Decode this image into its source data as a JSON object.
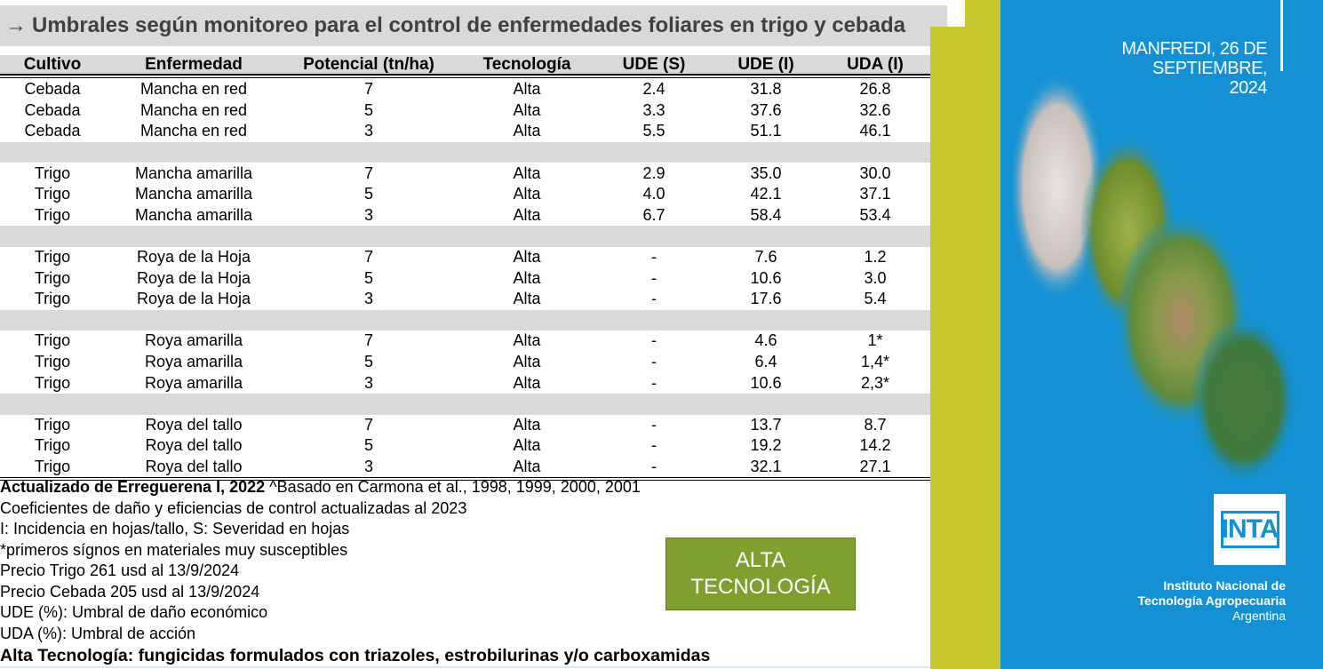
{
  "title": {
    "arrow": "→",
    "text": "Umbrales según monitoreo para el control de enfermedades foliares en trigo y cebada"
  },
  "table": {
    "headers": [
      "Cultivo",
      "Enfermedad",
      "Potencial (tn/ha)",
      "Tecnología",
      "UDE (S)",
      "UDE (I)",
      "UDA (I)"
    ],
    "groups": [
      [
        [
          "Cebada",
          "Mancha en red",
          "7",
          "Alta",
          "2.4",
          "31.8",
          "26.8"
        ],
        [
          "Cebada",
          "Mancha en red",
          "5",
          "Alta",
          "3.3",
          "37.6",
          "32.6"
        ],
        [
          "Cebada",
          "Mancha en red",
          "3",
          "Alta",
          "5.5",
          "51.1",
          "46.1"
        ]
      ],
      [
        [
          "Trigo",
          "Mancha amarilla",
          "7",
          "Alta",
          "2.9",
          "35.0",
          "30.0"
        ],
        [
          "Trigo",
          "Mancha amarilla",
          "5",
          "Alta",
          "4.0",
          "42.1",
          "37.1"
        ],
        [
          "Trigo",
          "Mancha amarilla",
          "3",
          "Alta",
          "6.7",
          "58.4",
          "53.4"
        ]
      ],
      [
        [
          "Trigo",
          "Roya de la Hoja",
          "7",
          "Alta",
          "-",
          "7.6",
          "1.2"
        ],
        [
          "Trigo",
          "Roya de la Hoja",
          "5",
          "Alta",
          "-",
          "10.6",
          "3.0"
        ],
        [
          "Trigo",
          "Roya de la Hoja",
          "3",
          "Alta",
          "-",
          "17.6",
          "5.4"
        ]
      ],
      [
        [
          "Trigo",
          "Roya amarilla",
          "7",
          "Alta",
          "-",
          "4.6",
          "1*"
        ],
        [
          "Trigo",
          "Roya amarilla",
          "5",
          "Alta",
          "-",
          "6.4",
          "1,4*"
        ],
        [
          "Trigo",
          "Roya amarilla",
          "3",
          "Alta",
          "-",
          "10.6",
          "2,3*"
        ]
      ],
      [
        [
          "Trigo",
          "Roya del tallo",
          "7",
          "Alta",
          "-",
          "13.7",
          "8.7"
        ],
        [
          "Trigo",
          "Roya del tallo",
          "5",
          "Alta",
          "-",
          "19.2",
          "14.2"
        ],
        [
          "Trigo",
          "Roya del tallo",
          "3",
          "Alta",
          "-",
          "32.1",
          "27.1"
        ]
      ]
    ]
  },
  "notes": {
    "line1_bold": "Actualizado de Erreguerena I, 2022",
    "line1_rest": " ^Basado en Carmona et al., 1998, 1999, 2000, 2001",
    "line2": "Coeficientes de daño y eficiencias de control actualizadas al 2023",
    "line3": "I: Incidencia en hojas/tallo, S: Severidad en hojas",
    "line4": " *primeros sígnos en materiales muy susceptibles",
    "line5": "Precio Trigo 261 usd al 13/9/2024",
    "line6": "Precio Cebada 205 usd al 13/9/2024",
    "line7": "UDE (%): Umbral de daño económico",
    "line8": "UDA (%): Umbral de acción",
    "final": "Alta Tecnología: fungicidas formulados con triazoles, estrobilurinas y/o carboxamidas"
  },
  "badge": {
    "line1": "ALTA",
    "line2": "TECNOLOGÍA"
  },
  "side": {
    "date_line1": "MANFREDI, 26 DE SEPTIEMBRE,",
    "date_line2": "2024",
    "logo": "INTA",
    "org_line1": "Instituto Nacional de",
    "org_line2": "Tecnología Agropecuaria",
    "org_line3": "Argentina"
  },
  "colors": {
    "panel_blue": "#1391d4",
    "band_lime": "#c6c82e",
    "badge_green": "#7fa02e",
    "header_gray": "#d9d9d9"
  }
}
